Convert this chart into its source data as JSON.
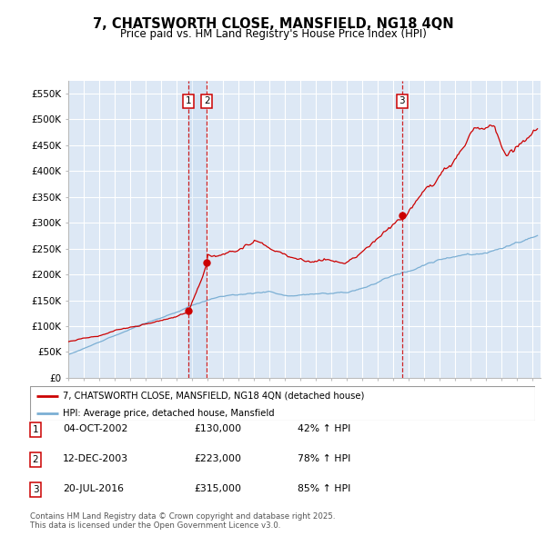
{
  "title": "7, CHATSWORTH CLOSE, MANSFIELD, NG18 4QN",
  "subtitle": "Price paid vs. HM Land Registry's House Price Index (HPI)",
  "ylim": [
    0,
    575000
  ],
  "yticks": [
    0,
    50000,
    100000,
    150000,
    200000,
    250000,
    300000,
    350000,
    400000,
    450000,
    500000,
    550000
  ],
  "ytick_labels": [
    "£0",
    "£50K",
    "£100K",
    "£150K",
    "£200K",
    "£250K",
    "£300K",
    "£350K",
    "£400K",
    "£450K",
    "£500K",
    "£550K"
  ],
  "xlim_start": 1995.0,
  "xlim_end": 2025.5,
  "plot_bg_color": "#dde8f5",
  "grid_color": "#ffffff",
  "red_line_color": "#cc0000",
  "blue_line_color": "#7bafd4",
  "purchase_dates": [
    2002.75,
    2003.95,
    2016.55
  ],
  "purchase_prices": [
    130000,
    223000,
    315000
  ],
  "purchase_labels": [
    "1",
    "2",
    "3"
  ],
  "legend_entries": [
    "7, CHATSWORTH CLOSE, MANSFIELD, NG18 4QN (detached house)",
    "HPI: Average price, detached house, Mansfield"
  ],
  "table_rows": [
    [
      "1",
      "04-OCT-2002",
      "£130,000",
      "42% ↑ HPI"
    ],
    [
      "2",
      "12-DEC-2003",
      "£223,000",
      "78% ↑ HPI"
    ],
    [
      "3",
      "20-JUL-2016",
      "£315,000",
      "85% ↑ HPI"
    ]
  ],
  "footnote": "Contains HM Land Registry data © Crown copyright and database right 2025.\nThis data is licensed under the Open Government Licence v3.0."
}
